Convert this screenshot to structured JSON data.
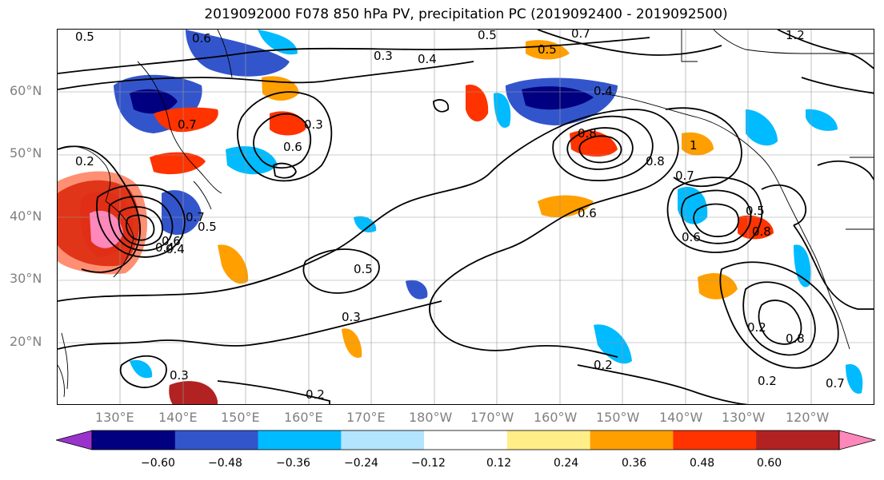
{
  "title": "2019092000 F078 850 hPa PV, precipitation PC (2019092400 - 2019092500)",
  "lat_labels": [
    "60°N",
    "50°N",
    "40°N",
    "30°N",
    "20°N"
  ],
  "lon_labels": [
    "130°E",
    "140°E",
    "150°E",
    "160°E",
    "170°E",
    "180°W",
    "170°W",
    "160°W",
    "150°W",
    "140°W",
    "130°W",
    "120°W"
  ],
  "contour_labels": [
    "0.5",
    "0.6",
    "0.5",
    "0.7",
    "1.2",
    "0.3",
    "0.4",
    "0.5",
    "0.4",
    "0.7",
    "0.3",
    "0.6",
    "0.2",
    "0.7",
    "0.6",
    "0.5",
    "0.4",
    "0.8",
    "0.8",
    "1",
    "0.7",
    "0.6",
    "0.5",
    "0.6",
    "0.8",
    "0.5",
    "0.3",
    "0.2",
    "0.2",
    "0.3",
    "0.2",
    "0.8",
    "0.2",
    "0.7",
    "0.4"
  ],
  "colorbar": {
    "ticks": [
      "−0.60",
      "−0.48",
      "−0.36",
      "−0.24",
      "−0.12",
      "0.12",
      "0.24",
      "0.36",
      "0.48",
      "0.60"
    ],
    "colors": [
      "#9933cc",
      "#000080",
      "#3355cc",
      "#00bbff",
      "#b3e5ff",
      "#ffffff",
      "#ffee88",
      "#ff9f00",
      "#ff3300",
      "#b22222",
      "#ff88bb"
    ]
  },
  "precip_colors": {
    "neg_strong": "#000080",
    "neg_mid": "#3355cc",
    "neg_light": "#00bbff",
    "pos_light": "#ff9f00",
    "pos_mid": "#ff3300",
    "pos_strong": "#b22222",
    "pos_max": "#ff88bb",
    "pos_weak": "#ffee88"
  }
}
